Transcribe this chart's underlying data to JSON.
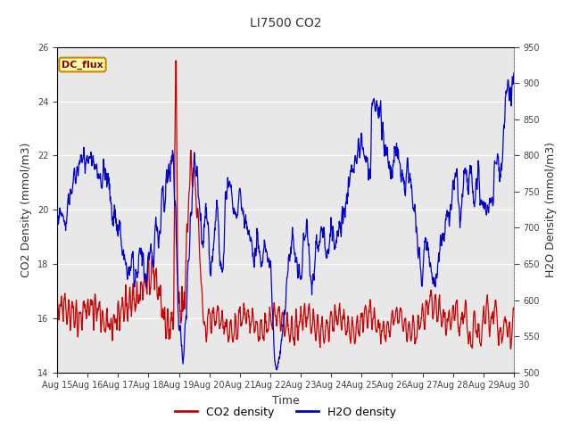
{
  "title": "LI7500 CO2",
  "xlabel": "Time",
  "ylabel_left": "CO2 Density (mmol/m3)",
  "ylabel_right": "H2O Density (mmol/m3)",
  "ylim_left": [
    14,
    26
  ],
  "ylim_right": [
    500,
    950
  ],
  "x_tick_labels": [
    "Aug 15",
    "Aug 16",
    "Aug 17",
    "Aug 18",
    "Aug 19",
    "Aug 20",
    "Aug 21",
    "Aug 22",
    "Aug 23",
    "Aug 24",
    "Aug 25",
    "Aug 26",
    "Aug 27",
    "Aug 28",
    "Aug 29",
    "Aug 30"
  ],
  "legend_labels": [
    "CO2 density",
    "H2O density"
  ],
  "dc_flux_label": "DC_flux",
  "dc_flux_box_color": "#ffffaa",
  "dc_flux_text_color": "#8b0000",
  "dc_flux_edge_color": "#cc8800",
  "outer_bg_color": "#ffffff",
  "plot_bg_color": "#e8e8e8",
  "inner_band_color": "#f0f0f0",
  "grid_color": "#d8d8d8",
  "co2_color": "#cc0000",
  "h2o_color": "#0000cc",
  "title_color": "#333333",
  "tick_label_color": "#444444",
  "axis_label_color": "#333333"
}
